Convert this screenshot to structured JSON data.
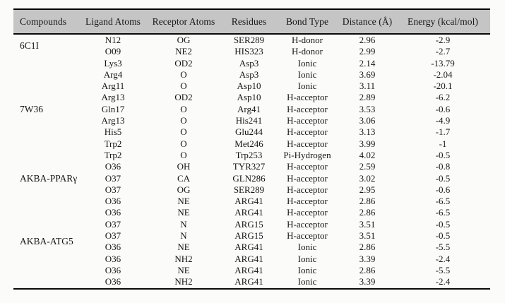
{
  "table": {
    "columns": [
      "Compounds",
      "Ligand Atoms",
      "Receptor Atoms",
      "Residues",
      "Bond Type",
      "Distance (Å)",
      "Energy (kcal/mol)"
    ],
    "groups": [
      {
        "compound": "6C1I",
        "rows": [
          [
            "N12",
            "OG",
            "SER289",
            "H-donor",
            "2.96",
            "-2.9"
          ],
          [
            "O09",
            "NE2",
            "HIS323",
            "H-donor",
            "2.99",
            "-2.7"
          ]
        ]
      },
      {
        "compound": "7W36",
        "rows": [
          [
            "Lys3",
            "OD2",
            "Asp3",
            "Ionic",
            "2.14",
            "-13.79"
          ],
          [
            "Arg4",
            "O",
            "Asp3",
            "Ionic",
            "3.69",
            "-2.04"
          ],
          [
            "Arg11",
            "O",
            "Asp10",
            "Ionic",
            "3.11",
            "-20.1"
          ],
          [
            "Arg13",
            "OD2",
            "Asp10",
            "H-acceptor",
            "2.89",
            "-6.2"
          ],
          [
            "Gln17",
            "O",
            "Arg41",
            "H-acceptor",
            "3.53",
            "-0.6"
          ],
          [
            "Arg13",
            "O",
            "His241",
            "H-acceptor",
            "3.06",
            "-4.9"
          ],
          [
            "His5",
            "O",
            "Glu244",
            "H-acceptor",
            "3.13",
            "-1.7"
          ],
          [
            "Trp2",
            "O",
            "Met246",
            "H-acceptor",
            "3.99",
            "-1"
          ],
          [
            "Trp2",
            "O",
            "Trp253",
            "Pi-Hydrogen",
            "4.02",
            "-0.5"
          ]
        ]
      },
      {
        "compound": "AKBA-PPARγ",
        "rows": [
          [
            "O36",
            "OH",
            "TYR327",
            "H-acceptor",
            "2.59",
            "-0.8"
          ],
          [
            "O37",
            "CA",
            "GLN286",
            "H-acceptor",
            "3.02",
            "-0.5"
          ],
          [
            "O37",
            "OG",
            "SER289",
            "H-acceptor",
            "2.95",
            "-0.6"
          ]
        ]
      },
      {
        "compound": "AKBA-ATG5",
        "rows": [
          [
            "O36",
            "NE",
            "ARG41",
            "H-acceptor",
            "2.86",
            "-6.5"
          ],
          [
            "O36",
            "NE",
            "ARG41",
            "H-acceptor",
            "2.86",
            "-6.5"
          ],
          [
            "O37",
            "N",
            "ARG15",
            "H-acceptor",
            "3.51",
            "-0.5"
          ],
          [
            "O37",
            "N",
            "ARG15",
            "H-acceptor",
            "3.51",
            "-0.5"
          ],
          [
            "O36",
            "NE",
            "ARG41",
            "Ionic",
            "2.86",
            "-5.5"
          ],
          [
            "O36",
            "NH2",
            "ARG41",
            "Ionic",
            "3.39",
            "-2.4"
          ],
          [
            "O36",
            "NE",
            "ARG41",
            "Ionic",
            "2.86",
            "-5.5"
          ],
          [
            "O36",
            "NH2",
            "ARG41",
            "Ionic",
            "3.39",
            "-2.4"
          ]
        ]
      }
    ]
  },
  "colors": {
    "header_bg": "#c5c5c5",
    "rule": "#000000",
    "text": "#151515",
    "page_bg": "#fbfbfa"
  }
}
